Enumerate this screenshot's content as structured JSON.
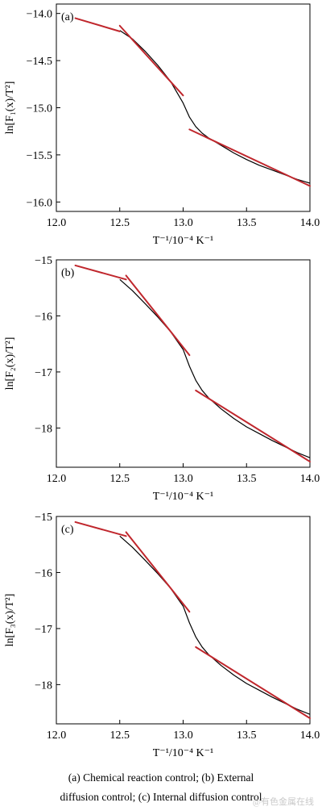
{
  "caption": {
    "line1": "(a)  Chemical  reaction  control;  (b)  External",
    "line2": "diffusion control; (c) Internal diffusion control"
  },
  "watermark": "@有色金属在线",
  "colors": {
    "curve": "#000000",
    "fit": "#c0272d",
    "axis": "#000000"
  },
  "chart_data": [
    {
      "type": "line",
      "panel_label": "(a)",
      "xlabel": "T⁻¹/10⁻⁴ K⁻¹",
      "ylabel": "ln[F₁(x)/T²]",
      "xlim": [
        12.0,
        14.0
      ],
      "ylim": [
        -16.1,
        -13.9
      ],
      "xticks": [
        12.0,
        12.5,
        13.0,
        13.5,
        14.0
      ],
      "xtick_labels": [
        "12.0",
        "12.5",
        "13.0",
        "13.5",
        "14.0"
      ],
      "yticks": [
        -14.0,
        -14.5,
        -15.0,
        -15.5,
        -16.0
      ],
      "ytick_labels": [
        "−14.0",
        "−14.5",
        "−15.0",
        "−15.5",
        "−16.0"
      ],
      "curve": {
        "x": [
          12.5,
          12.6,
          12.7,
          12.8,
          12.9,
          13.0,
          13.05,
          13.1,
          13.15,
          13.2,
          13.3,
          13.4,
          13.5,
          13.6,
          13.7,
          13.8,
          13.9,
          14.0
        ],
        "y": [
          -14.18,
          -14.27,
          -14.4,
          -14.55,
          -14.72,
          -14.95,
          -15.1,
          -15.2,
          -15.27,
          -15.32,
          -15.4,
          -15.48,
          -15.55,
          -15.61,
          -15.66,
          -15.71,
          -15.76,
          -15.8
        ]
      },
      "fits": [
        {
          "x": [
            12.15,
            12.5
          ],
          "y": [
            -14.05,
            -14.19
          ]
        },
        {
          "x": [
            12.5,
            13.0
          ],
          "y": [
            -14.13,
            -14.87
          ]
        },
        {
          "x": [
            13.05,
            14.0
          ],
          "y": [
            -15.23,
            -15.83
          ]
        }
      ]
    },
    {
      "type": "line",
      "panel_label": "(b)",
      "xlabel": "T⁻¹/10⁻⁴ K⁻¹",
      "ylabel": "ln[F₂(x)/T²]",
      "xlim": [
        12.0,
        14.0
      ],
      "ylim": [
        -18.7,
        -15.0
      ],
      "xticks": [
        12.0,
        12.5,
        13.0,
        13.5,
        14.0
      ],
      "xtick_labels": [
        "12.0",
        "12.5",
        "13.0",
        "13.5",
        "14.0"
      ],
      "yticks": [
        -15,
        -16,
        -17,
        -18
      ],
      "ytick_labels": [
        "−15",
        "−16",
        "−17",
        "−18"
      ],
      "curve": {
        "x": [
          12.5,
          12.6,
          12.7,
          12.8,
          12.9,
          13.0,
          13.05,
          13.1,
          13.15,
          13.2,
          13.3,
          13.4,
          13.5,
          13.6,
          13.7,
          13.8,
          13.9,
          14.0
        ],
        "y": [
          -15.35,
          -15.55,
          -15.78,
          -16.02,
          -16.28,
          -16.6,
          -16.9,
          -17.15,
          -17.33,
          -17.46,
          -17.66,
          -17.83,
          -17.98,
          -18.1,
          -18.22,
          -18.33,
          -18.44,
          -18.53
        ]
      },
      "fits": [
        {
          "x": [
            12.15,
            12.55
          ],
          "y": [
            -15.1,
            -15.35
          ]
        },
        {
          "x": [
            12.55,
            13.05
          ],
          "y": [
            -15.28,
            -16.7
          ]
        },
        {
          "x": [
            13.1,
            14.0
          ],
          "y": [
            -17.33,
            -18.6
          ]
        }
      ]
    },
    {
      "type": "line",
      "panel_label": "(c)",
      "xlabel": "T⁻¹/10⁻⁴ K⁻¹",
      "ylabel": "ln[F₃(x)/T²]",
      "xlim": [
        12.0,
        14.0
      ],
      "ylim": [
        -18.7,
        -15.0
      ],
      "xticks": [
        12.0,
        12.5,
        13.0,
        13.5,
        14.0
      ],
      "xtick_labels": [
        "12.0",
        "12.5",
        "13.0",
        "13.5",
        "14.0"
      ],
      "yticks": [
        -15,
        -16,
        -17,
        -18
      ],
      "ytick_labels": [
        "−15",
        "−16",
        "−17",
        "−18"
      ],
      "curve": {
        "x": [
          12.5,
          12.6,
          12.7,
          12.8,
          12.9,
          13.0,
          13.05,
          13.1,
          13.15,
          13.2,
          13.3,
          13.4,
          13.5,
          13.6,
          13.7,
          13.8,
          13.9,
          14.0
        ],
        "y": [
          -15.35,
          -15.55,
          -15.78,
          -16.02,
          -16.28,
          -16.6,
          -16.9,
          -17.15,
          -17.33,
          -17.46,
          -17.66,
          -17.83,
          -17.98,
          -18.1,
          -18.22,
          -18.33,
          -18.44,
          -18.53
        ]
      },
      "fits": [
        {
          "x": [
            12.15,
            12.55
          ],
          "y": [
            -15.1,
            -15.35
          ]
        },
        {
          "x": [
            12.55,
            13.05
          ],
          "y": [
            -15.28,
            -16.7
          ]
        },
        {
          "x": [
            13.1,
            14.0
          ],
          "y": [
            -17.33,
            -18.6
          ]
        }
      ]
    }
  ]
}
